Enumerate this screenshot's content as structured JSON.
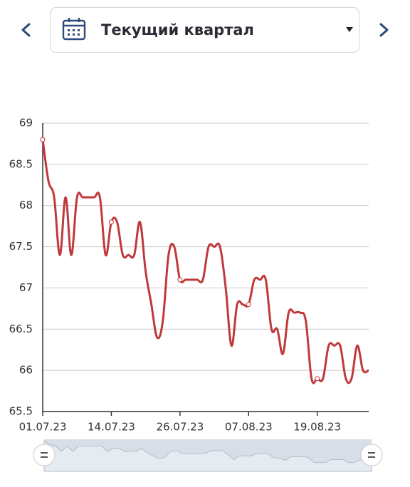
{
  "header": {
    "period": "Текущий квартал"
  },
  "chart_data": {
    "type": "line",
    "categories": [
      "01.07.23",
      null,
      null,
      null,
      null,
      null,
      null,
      null,
      null,
      null,
      null,
      null,
      "14.07.23",
      null,
      null,
      null,
      null,
      null,
      null,
      null,
      null,
      null,
      null,
      null,
      "26.07.23",
      null,
      null,
      null,
      null,
      null,
      null,
      null,
      null,
      null,
      null,
      null,
      "07.08.23",
      null,
      null,
      null,
      null,
      null,
      null,
      null,
      null,
      null,
      null,
      null,
      "19.08.23",
      null,
      null,
      null,
      null,
      null,
      null,
      null,
      null,
      null
    ],
    "series": [
      {
        "name": null,
        "color": "#c0393b",
        "values": [
          68.8,
          68.3,
          68.1,
          67.4,
          68.1,
          67.4,
          68.1,
          68.1,
          68.1,
          68.1,
          68.1,
          67.4,
          67.8,
          67.8,
          67.4,
          67.4,
          67.4,
          67.8,
          67.2,
          66.8,
          66.4,
          66.6,
          67.4,
          67.5,
          67.1,
          67.1,
          67.1,
          67.1,
          67.1,
          67.5,
          67.5,
          67.5,
          67.0,
          66.3,
          66.8,
          66.8,
          66.8,
          67.1,
          67.1,
          67.1,
          66.5,
          66.5,
          66.2,
          66.7,
          66.7,
          66.7,
          66.6,
          65.9,
          65.9,
          65.9,
          66.3,
          66.3,
          66.3,
          65.9,
          65.9,
          66.3,
          66.0,
          66.0
        ]
      }
    ],
    "ylim": [
      65.5,
      69
    ],
    "yticks": [
      65.5,
      66,
      66.5,
      67,
      67.5,
      68,
      68.5,
      69
    ],
    "grid": true
  }
}
